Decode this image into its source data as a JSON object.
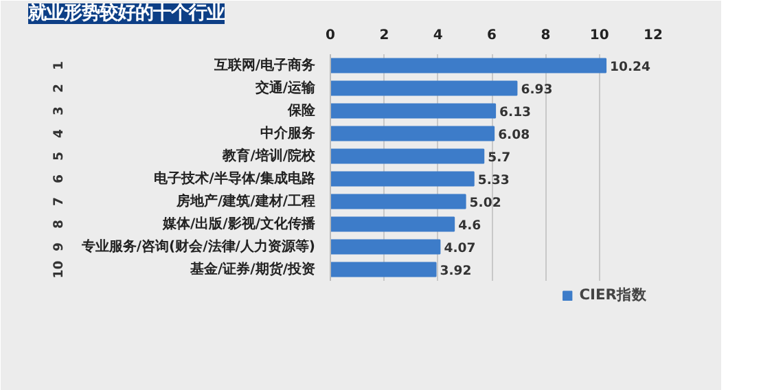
{
  "chart_data": {
    "type": "bar",
    "orientation": "horizontal",
    "title": "就业形势较好的十个行业",
    "categories": [
      "互联网/电子商务",
      "交通/运输",
      "保险",
      "中介服务",
      "教育/培训/院校",
      "电子技术/半导体/集成电路",
      "房地产/建筑/建材/工程",
      "媒体/出版/影视/文化传播",
      "专业服务/咨询(财会/法律/人力资源等)",
      "基金/证券/期货/投资"
    ],
    "series": [
      {
        "name": "CIER指数",
        "color": "#3d7cc9",
        "values": [
          10.24,
          6.93,
          6.13,
          6.08,
          5.7,
          5.33,
          5.02,
          4.6,
          4.07,
          3.92
        ]
      }
    ],
    "xlim": [
      0,
      12
    ],
    "xticks": [
      0,
      2,
      4,
      6,
      8,
      10,
      12
    ],
    "grid": "x",
    "legend": "bottom",
    "data_labels": true,
    "annotations": [
      "1",
      "2",
      "3",
      "4",
      "5",
      "6",
      "7",
      "8",
      "9",
      "10"
    ]
  }
}
